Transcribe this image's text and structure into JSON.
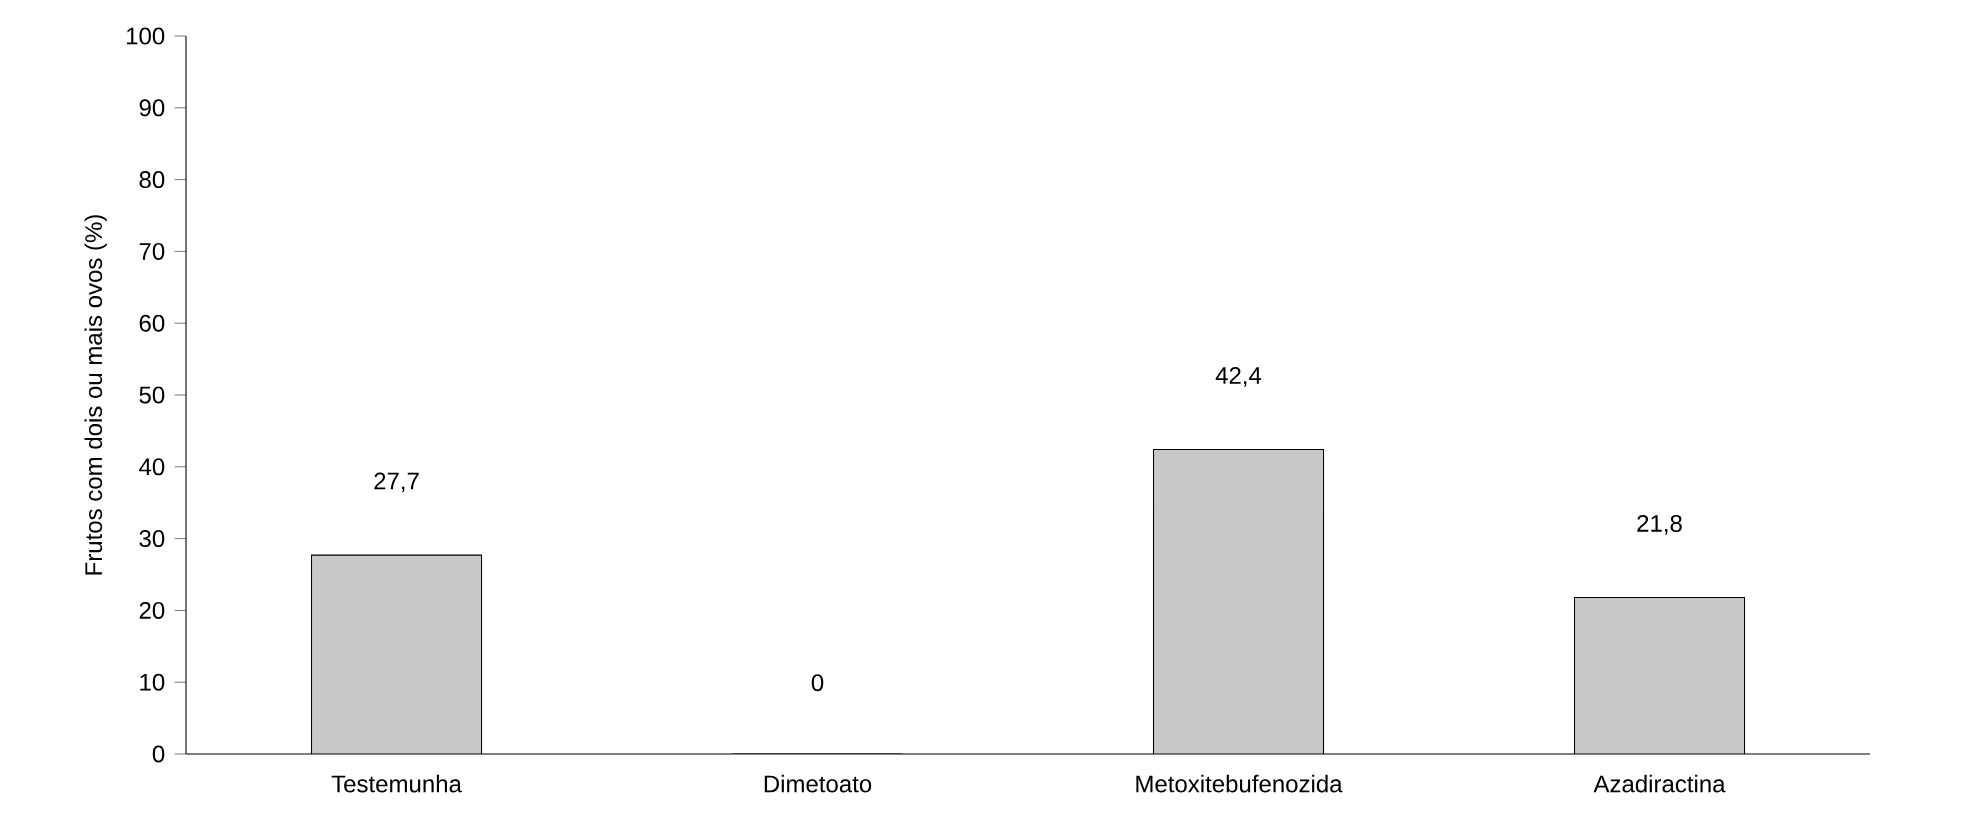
{
  "chart_data": {
    "type": "bar",
    "ylabel": "Frutos com dois ou mais ovos (%)",
    "categories": [
      "Testemunha",
      "Dimetoato",
      "Metoxitebufenozida",
      "Azadiractina"
    ],
    "values": [
      27.7,
      0,
      42.4,
      21.8
    ],
    "value_labels": [
      "27,7",
      "0",
      "42,4",
      "21,8"
    ],
    "color": "#c8c8c8",
    "ylim": [
      0,
      100
    ],
    "yticks": [
      0,
      10,
      20,
      30,
      40,
      50,
      60,
      70,
      80,
      90,
      100
    ]
  }
}
